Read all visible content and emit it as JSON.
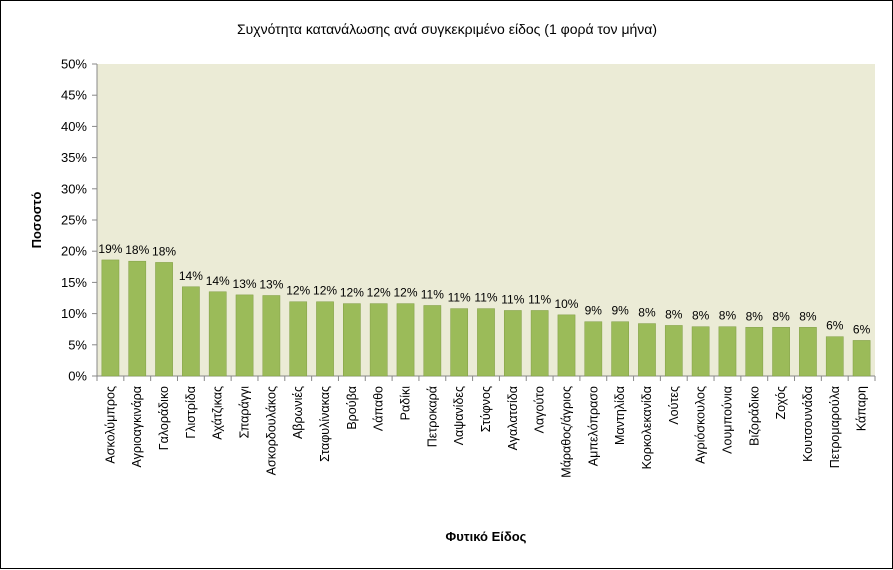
{
  "chart_data": {
    "type": "bar",
    "title": "Συχνότητα κατανάλωσης ανά συγκεκριμένο είδος (1 φορά τον μήνα)",
    "xlabel": "Φυτικό Είδος",
    "ylabel": "Ποσοστό",
    "ylim": [
      0,
      50
    ],
    "yticks": [
      "0%",
      "5%",
      "10%",
      "15%",
      "20%",
      "25%",
      "30%",
      "35%",
      "40%",
      "45%",
      "50%"
    ],
    "grid": false,
    "categories": [
      "Ασκολύμπρος",
      "Αγριοαγκινάρα",
      "Γαλοράδικο",
      "Γλιστρίδα",
      "Αχάτζικας",
      "Σπαράγγι",
      "Ασκορδουλάκος",
      "Αβρωνιές",
      "Σταφυλίνακας",
      "Βρούβα",
      "Λάπαθο",
      "Ραδίκι",
      "Πετροκαρά",
      "Λαψανίδες",
      "Στύφνος",
      "Αγαλατσίδα",
      "Λαγούτο",
      "Μάραθος/άγριος",
      "Αμπελόπρασο",
      "Μαντηλίδα",
      "Κορκολεκανίδα",
      "Λούτες",
      "Αγριόσκουλος",
      "Λουμπούνια",
      "Βιζοράδικο",
      "Ζοχός",
      "Κουτσουνάδα",
      "Πετρομαρούλα",
      "Κάπαρη"
    ],
    "values": [
      18.6,
      18.4,
      18.2,
      14.3,
      13.5,
      13.0,
      12.9,
      11.9,
      11.9,
      11.6,
      11.6,
      11.6,
      11.3,
      10.8,
      10.8,
      10.5,
      10.5,
      9.8,
      8.7,
      8.7,
      8.4,
      8.1,
      7.9,
      7.9,
      7.8,
      7.8,
      7.8,
      6.3,
      5.7
    ],
    "data_labels": [
      "19%",
      "18%",
      "18%",
      "14%",
      "14%",
      "13%",
      "13%",
      "12%",
      "12%",
      "12%",
      "12%",
      "12%",
      "11%",
      "11%",
      "11%",
      "11%",
      "11%",
      "10%",
      "9%",
      "9%",
      "8%",
      "8%",
      "8%",
      "8%",
      "8%",
      "8%",
      "8%",
      "6%",
      "6%"
    ],
    "colors": {
      "bar": "#9bbb59",
      "bar_edge": "#7f9d43",
      "plot_bg": "#ebebd6",
      "axis": "#888888"
    }
  }
}
